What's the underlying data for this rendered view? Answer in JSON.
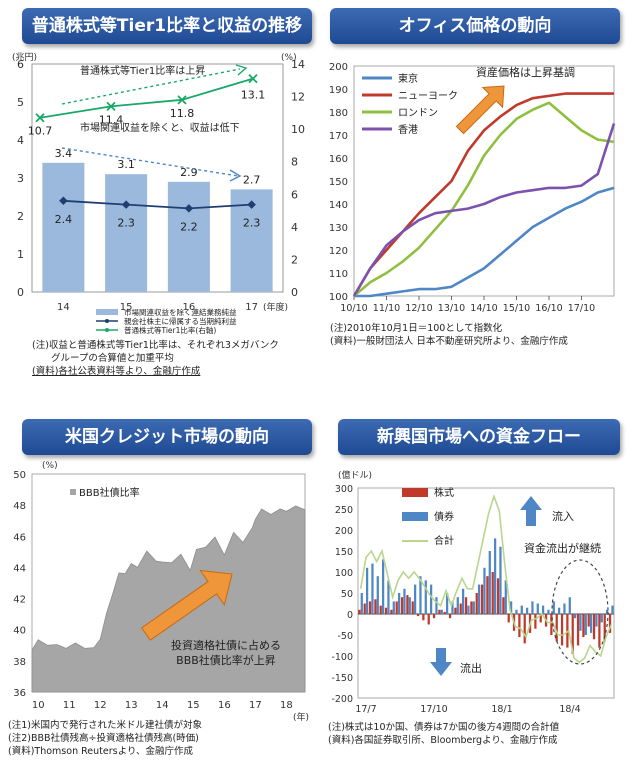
{
  "panels": {
    "p1": {
      "title": "普通株式等Tier1比率と収益の推移"
    },
    "p2": {
      "title": "オフィス価格の動向"
    },
    "p3": {
      "title": "米国クレジット市場の動向"
    },
    "p4": {
      "title": "新興国市場への資金フロー"
    }
  },
  "notes": {
    "p1": [
      "(注)収益と普通株式等Tier1比率は、それぞれ3メガバンク",
      "　　グループの合算値と加重平均",
      "(資料)各社公表資料等より、金融庁作成"
    ],
    "p2": [
      "(注)2010年10月1日＝100として指数化",
      "(資料)一般財団法人 日本不動産研究所より、金融庁作成"
    ],
    "p3": [
      "(注1)米国内で発行された米ドル建社債が対象",
      "(注2)BBB社債残高÷投資適格社債残高(時価)",
      "(資料)Thomson Reutersより、金融庁作成"
    ],
    "p4": [
      "(注)株式は10か国、債券は7か国の後方4週間の合計値",
      "(資料)各国証券取引所、Bloombergより、金融庁作成"
    ]
  },
  "chart_data": [
    {
      "type": "bar",
      "title": "普通株式等Tier1比率と収益の推移",
      "categories": [
        "14",
        "15",
        "16",
        "17"
      ],
      "xunit": "(年度)",
      "left_axis": {
        "unit": "(兆円)",
        "ylim": [
          0,
          6
        ],
        "ticks": [
          "0",
          "1",
          "2",
          "3",
          "4",
          "5",
          "6"
        ]
      },
      "right_axis": {
        "unit": "(%)",
        "ylim": [
          0,
          14
        ],
        "ticks": [
          "0",
          "2",
          "4",
          "6",
          "8",
          "10",
          "12",
          "14"
        ]
      },
      "series": [
        {
          "name": "市場関連収益を除く連結業務純益",
          "kind": "bar",
          "axis": "left",
          "values": [
            3.4,
            3.1,
            2.9,
            2.7
          ],
          "labels": [
            "3.4",
            "3.1",
            "2.9",
            "2.7"
          ],
          "color": "#9bb8dd"
        },
        {
          "name": "親会社株主に帰属する当期純利益",
          "kind": "line",
          "axis": "left",
          "values": [
            2.4,
            2.3,
            2.2,
            2.3
          ],
          "labels": [
            "2.4",
            "2.3",
            "2.2",
            "2.3"
          ],
          "color": "#1f3f73"
        },
        {
          "name": "普通株式等Tier1比率(右軸)",
          "kind": "line",
          "axis": "right",
          "values": [
            10.7,
            11.4,
            11.8,
            13.1
          ],
          "labels": [
            "10.7",
            "11.4",
            "11.8",
            "13.1"
          ],
          "color": "#1aa86a"
        }
      ],
      "annotations": [
        "普通株式等Tier1比率は上昇",
        "市場関連収益を除くと、収益は低下"
      ]
    },
    {
      "type": "line",
      "title": "オフィス価格の動向",
      "ylim": [
        100,
        200
      ],
      "yticks": [
        "100",
        "110",
        "120",
        "130",
        "140",
        "150",
        "160",
        "170",
        "180",
        "190",
        "200"
      ],
      "xticks": [
        "10/10",
        "11/10",
        "12/10",
        "13/10",
        "14/10",
        "15/10",
        "16/10",
        "17/10"
      ],
      "x": [
        0,
        0.5,
        1,
        1.5,
        2,
        2.5,
        3,
        3.5,
        4,
        4.5,
        5,
        5.5,
        6,
        6.5,
        7,
        7.5,
        8
      ],
      "series": [
        {
          "name": "東京",
          "color": "#4f86c6",
          "values": [
            100,
            100,
            101,
            102,
            103,
            103,
            104,
            108,
            112,
            118,
            124,
            130,
            134,
            138,
            141,
            145,
            147
          ]
        },
        {
          "name": "ニューヨーク",
          "color": "#c0392b",
          "values": [
            100,
            112,
            120,
            128,
            136,
            143,
            150,
            163,
            172,
            178,
            183,
            186,
            187,
            188,
            188,
            188,
            188
          ]
        },
        {
          "name": "ロンドン",
          "color": "#8fbf3f",
          "values": [
            100,
            106,
            110,
            115,
            121,
            129,
            137,
            148,
            161,
            170,
            177,
            181,
            184,
            178,
            172,
            168,
            167
          ]
        },
        {
          "name": "香港",
          "color": "#7b52ae",
          "values": [
            100,
            112,
            122,
            128,
            133,
            136,
            137,
            138,
            140,
            143,
            145,
            146,
            147,
            147,
            148,
            153,
            175
          ]
        }
      ],
      "annotations": [
        "資産価格は上昇基調"
      ]
    },
    {
      "type": "area",
      "title": "米国クレジット市場の動向",
      "yunit": "(%)",
      "ylim": [
        36,
        50
      ],
      "yticks": [
        "36",
        "38",
        "40",
        "42",
        "44",
        "46",
        "48",
        "50"
      ],
      "xticks": [
        "10",
        "11",
        "12",
        "13",
        "14",
        "15",
        "16",
        "17",
        "18"
      ],
      "xunit": "(年)",
      "xrange": [
        2009.8,
        2018.6
      ],
      "series": [
        {
          "name": "BBB社債比率",
          "color": "#a6a6a6"
        }
      ],
      "x": [
        2009.8,
        2010.0,
        2010.3,
        2010.6,
        2010.9,
        2011.2,
        2011.5,
        2011.8,
        2012.0,
        2012.2,
        2012.4,
        2012.6,
        2012.8,
        2013.0,
        2013.2,
        2013.5,
        2013.8,
        2014.0,
        2014.3,
        2014.6,
        2014.9,
        2015.1,
        2015.4,
        2015.7,
        2016.0,
        2016.3,
        2016.6,
        2016.9,
        2017.0,
        2017.2,
        2017.5,
        2017.8,
        2018.0,
        2018.3,
        2018.6
      ],
      "values": [
        38.9,
        39.1,
        39.2,
        38.8,
        39.0,
        38.9,
        39.0,
        38.6,
        39.6,
        40.8,
        42.5,
        43.4,
        43.8,
        44.0,
        44.2,
        44.8,
        44.6,
        44.1,
        44.5,
        44.6,
        44.0,
        44.9,
        45.5,
        45.7,
        45.0,
        46.0,
        45.8,
        46.3,
        47.3,
        47.5,
        47.6,
        47.5,
        47.8,
        47.7,
        47.9
      ],
      "annotations": [
        "投資適格社債に占める",
        "BBB社債比率が上昇"
      ]
    },
    {
      "type": "bar",
      "title": "新興国市場への資金フロー",
      "yunit": "(億ドル)",
      "ylim": [
        -200,
        300
      ],
      "yticks": [
        "-200",
        "-150",
        "-100",
        "-50",
        "0",
        "50",
        "100",
        "150",
        "200",
        "250",
        "300"
      ],
      "xticks": [
        "17/7",
        "17/10",
        "18/1",
        "18/4"
      ],
      "series": [
        {
          "name": "株式",
          "kind": "bar",
          "color": "#c0392b",
          "values": [
            10,
            25,
            30,
            35,
            20,
            15,
            10,
            30,
            40,
            45,
            30,
            -5,
            -15,
            -25,
            -10,
            10,
            5,
            -10,
            15,
            25,
            40,
            30,
            50,
            70,
            90,
            100,
            85,
            40,
            -20,
            -40,
            -55,
            -70,
            -45,
            -35,
            -20,
            -30,
            -50,
            -65,
            -75,
            -80,
            -95,
            -75,
            -55,
            -30,
            -60,
            -80,
            -65,
            -45
          ]
        },
        {
          "name": "債券",
          "kind": "bar",
          "color": "#4f86c6",
          "values": [
            50,
            110,
            120,
            90,
            130,
            80,
            30,
            50,
            60,
            40,
            70,
            90,
            80,
            70,
            40,
            10,
            50,
            30,
            40,
            60,
            20,
            30,
            70,
            110,
            150,
            180,
            160,
            80,
            30,
            10,
            20,
            15,
            30,
            25,
            20,
            10,
            30,
            15,
            25,
            40,
            -10,
            -40,
            -50,
            -45,
            -30,
            -20,
            10,
            20
          ]
        },
        {
          "name": "合計",
          "kind": "line",
          "color": "#b8d68c",
          "values": [
            60,
            135,
            150,
            125,
            150,
            95,
            40,
            80,
            100,
            85,
            100,
            85,
            65,
            45,
            30,
            20,
            55,
            20,
            55,
            85,
            60,
            60,
            120,
            180,
            240,
            280,
            245,
            120,
            10,
            -30,
            -35,
            -55,
            -15,
            -10,
            0,
            -20,
            -20,
            -50,
            -50,
            -40,
            -105,
            -115,
            -105,
            -75,
            -90,
            -100,
            -55,
            -25
          ]
        }
      ],
      "annotations": [
        "流入",
        "資金流出が継続",
        "流出"
      ]
    }
  ]
}
